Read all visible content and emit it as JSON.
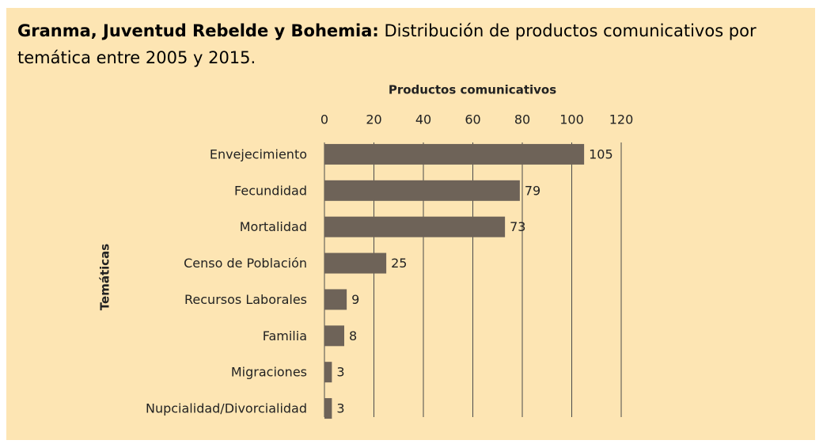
{
  "chart_data": {
    "type": "bar",
    "orientation": "horizontal",
    "title": "Granma, Juventud Rebelde y Bohemia:",
    "subtitle": "Distribución de productos comunicativos por temática entre 2005 y 2015.",
    "x_label": "Productos comunicativos",
    "y_label": "Temáticas",
    "categories": [
      "Envejecimiento",
      "Fecundidad",
      "Mortalidad",
      "Censo de Población",
      "Recursos Laborales",
      "Familia",
      "Migraciones",
      "Nupcialidad/Divorcialidad"
    ],
    "values": [
      105,
      79,
      73,
      25,
      9,
      8,
      3,
      3
    ],
    "color": "#6e6358",
    "xlim": [
      0,
      120
    ],
    "xticks": [
      0,
      20,
      40,
      60,
      80,
      100,
      120
    ],
    "grid": true
  }
}
